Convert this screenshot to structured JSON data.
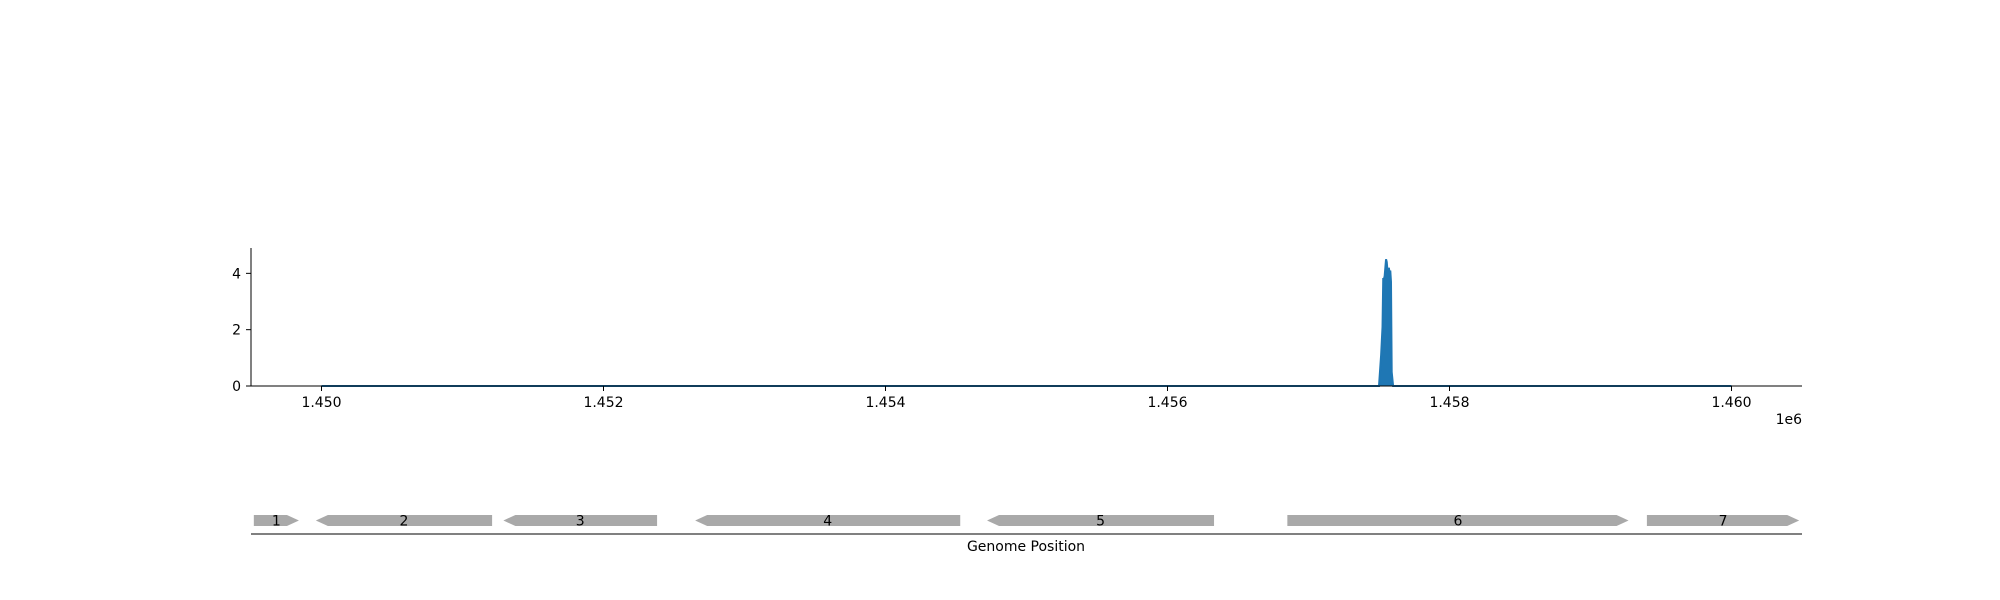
{
  "chart_data": [
    {
      "type": "area",
      "title": "",
      "xlabel": "",
      "ylabel": "",
      "xlim": [
        1449500,
        1460500
      ],
      "ylim": [
        0,
        4.9
      ],
      "x_ticks": [
        1450000,
        1452000,
        1454000,
        1456000,
        1458000,
        1460000
      ],
      "x_tick_labels": [
        "1.450",
        "1.452",
        "1.454",
        "1.456",
        "1.458",
        "1.460"
      ],
      "x_offset_label": "1e6",
      "y_ticks": [
        0,
        2,
        4
      ],
      "y_tick_labels": [
        "0",
        "2",
        "4"
      ],
      "grid": false,
      "series": [
        {
          "color": "#1f77b4",
          "x": [
            1450000,
            1457500,
            1457515,
            1457520,
            1457525,
            1457530,
            1457535,
            1457540,
            1457545,
            1457550,
            1457555,
            1457560,
            1457565,
            1457570,
            1457575,
            1457580,
            1457585,
            1457590,
            1457600,
            1460000
          ],
          "values": [
            0,
            0,
            1.1,
            1.6,
            2.1,
            3.8,
            3.8,
            3.9,
            4.2,
            4.5,
            4.4,
            4.1,
            3.9,
            4.2,
            4.0,
            4.1,
            3.7,
            0.5,
            0,
            0
          ]
        }
      ]
    },
    {
      "type": "gene_map",
      "xlabel": "Genome Position",
      "xlim": [
        1449500,
        1460500
      ],
      "color": "#a9a9a9",
      "genes": [
        {
          "label": "1",
          "start": 1449520,
          "end": 1449840,
          "strand": "+"
        },
        {
          "label": "2",
          "start": 1449960,
          "end": 1451210,
          "strand": "-"
        },
        {
          "label": "3",
          "start": 1451290,
          "end": 1452380,
          "strand": "-"
        },
        {
          "label": "4",
          "start": 1452650,
          "end": 1454530,
          "strand": "-"
        },
        {
          "label": "5",
          "start": 1454720,
          "end": 1456330,
          "strand": "-"
        },
        {
          "label": "6",
          "start": 1456850,
          "end": 1459270,
          "strand": "+"
        },
        {
          "label": "7",
          "start": 1459400,
          "end": 1460480,
          "strand": "+"
        }
      ]
    }
  ]
}
